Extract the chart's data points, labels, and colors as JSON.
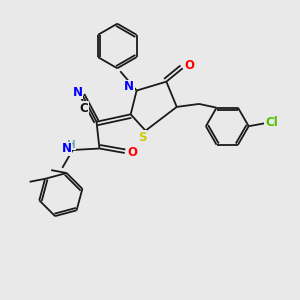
{
  "background_color": "#e9e9e9",
  "fig_size": [
    3.0,
    3.0
  ],
  "dpi": 100,
  "atom_colors": {
    "S": "#cccc00",
    "N": "#0000ff",
    "O": "#ff0000",
    "Cl": "#55bb00",
    "C_cyano": "#000000",
    "H": "#66aaaa"
  },
  "lw": 1.3,
  "dbo": 0.012
}
